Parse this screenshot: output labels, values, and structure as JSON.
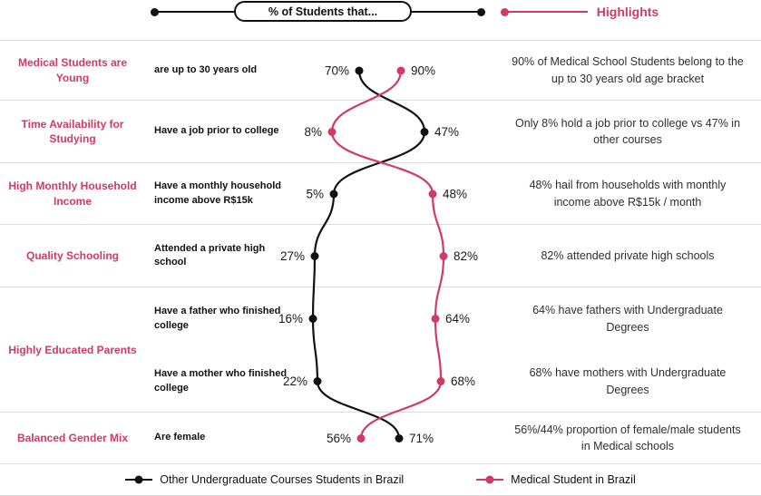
{
  "header": {
    "axis_label": "% of Students that...",
    "highlights_title": "Highlights"
  },
  "rows": [
    {
      "category": "Medical Students are Young",
      "descriptor": "are up to 30 years old",
      "highlight": "90% of Medical School Students belong to the up to 30 years old age bracket"
    },
    {
      "category": "Time Availability for Studying",
      "descriptor": "Have a job prior to college",
      "highlight": "Only 8% hold a job prior to college vs 47% in other courses"
    },
    {
      "category": "High Monthly Household Income",
      "descriptor": "Have a monthly household income above R$15k",
      "highlight": "48% hail from households with monthly income above R$15k / month"
    },
    {
      "category": "Quality Schooling",
      "descriptor": "Attended a private high school",
      "highlight": "82% attended private high schools"
    },
    {
      "category": "Highly Educated Parents",
      "descriptor": "Have a father who finished college",
      "highlight": "64% have fathers with Undergraduate Degrees"
    },
    {
      "category": "",
      "descriptor": "Have a mother who finished college",
      "highlight": "68% have mothers with Undergraduate Degrees"
    },
    {
      "category": "Balanced Gender Mix",
      "descriptor": "Are female",
      "highlight": "56%/44% proportion of female/male students in Medical schools"
    }
  ],
  "chart_data": {
    "type": "line",
    "categories": [
      "are up to 30 years old",
      "Have a job prior to college",
      "Have a monthly household income above R$15k",
      "Attended a private high school",
      "Have a father who finished college",
      "Have a mother who finished college",
      "Are female"
    ],
    "series": [
      {
        "name": "Other Undergraduate Courses Students in Brazil",
        "color": "#111111",
        "values": [
          70,
          47,
          5,
          27,
          16,
          22,
          71
        ]
      },
      {
        "name": "Medical Student in Brazil",
        "color": "#d13a63",
        "values": [
          90,
          8,
          48,
          82,
          64,
          68,
          56
        ]
      }
    ],
    "value_suffix": "%",
    "layout": {
      "row_centers": [
        78,
        145.5,
        214,
        282.5,
        351.5,
        420.5,
        483.5
      ],
      "x_by_series": [
        [
          396,
          468,
          368,
          347,
          345,
          350,
          440
        ],
        [
          442,
          366,
          477,
          489,
          480,
          486,
          398
        ]
      ]
    }
  },
  "colors": {
    "accent_pink": "#d13a63",
    "line_black": "#111111",
    "divider": "#dcdcdc"
  }
}
